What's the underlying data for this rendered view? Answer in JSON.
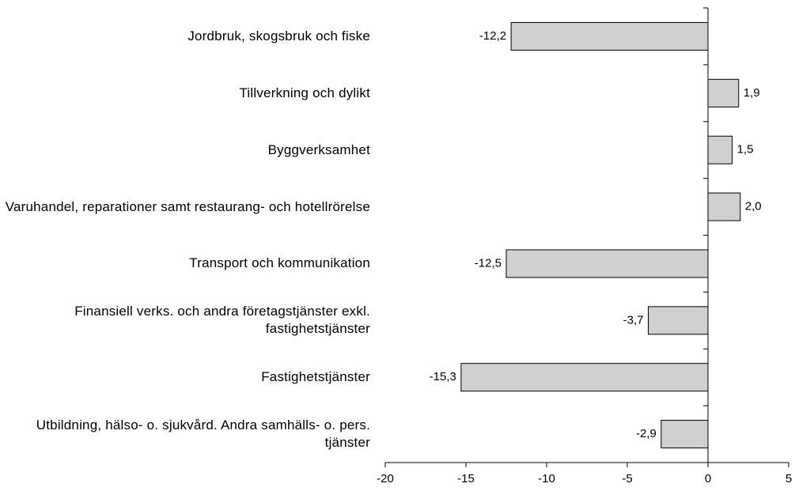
{
  "chart_data": {
    "type": "bar",
    "orientation": "horizontal",
    "categories": [
      "Jordbruk, skogsbruk och fiske",
      "Tillverkning och dylikt",
      "Byggverksamhet",
      "Varuhandel, reparationer samt restaurang- och hotellrörelse",
      "Transport och kommunikation",
      "Finansiell verks. och andra företagstjänster exkl. fastighetstjänster",
      "Fastighetstjänster",
      "Utbildning, hälso- o. sjukvård. Andra samhälls- o. pers. tjänster"
    ],
    "values": [
      -12.2,
      1.9,
      1.5,
      2.0,
      -12.5,
      -3.7,
      -15.3,
      -2.9
    ],
    "value_labels": [
      "-12,2",
      "1,9",
      "1,5",
      "2,0",
      "-12,5",
      "-3,7",
      "-15,3",
      "-2,9"
    ],
    "color": "#d0d0d0",
    "xlim": [
      -20,
      5
    ],
    "xticks": [
      -20,
      -15,
      -10,
      -5,
      0,
      5
    ]
  }
}
